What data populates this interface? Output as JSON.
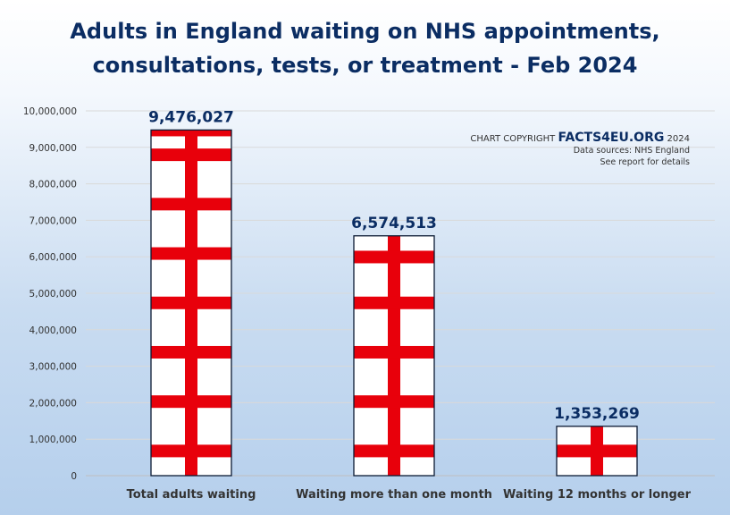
{
  "title_line1": "Adults in England waiting on NHS appointments,",
  "title_line2": "consultations, tests, or treatment - Feb 2024",
  "copyright": {
    "prefix": "CHART COPYRIGHT",
    "brand": "FACTS4EU.ORG",
    "year": "2024",
    "source": "Data sources: NHS England",
    "note": "See report for details"
  },
  "colors": {
    "title": "#0b2d63",
    "bar_fill": "#ffffff",
    "bar_border": "#0b1a33",
    "cross": "#e8000b",
    "label": "#0b2d63",
    "gridline": "#d9d9d9"
  },
  "chart_data": {
    "type": "bar",
    "title": "Adults in England waiting on NHS appointments, consultations, tests, or treatment - Feb 2024",
    "categories": [
      "Total adults waiting",
      "Waiting more than one month",
      "Waiting 12 months or longer"
    ],
    "values": [
      9476027,
      6574513,
      1353269
    ],
    "value_labels": [
      "9,476,027",
      "6,574,513",
      "1,353,269"
    ],
    "ylim": [
      0,
      10000000
    ],
    "yticks": [
      0,
      1000000,
      2000000,
      3000000,
      4000000,
      5000000,
      6000000,
      7000000,
      8000000,
      9000000,
      10000000
    ],
    "ytick_labels": [
      "0",
      "1,000,000",
      "2,000,000",
      "3,000,000",
      "4,000,000",
      "5,000,000",
      "6,000,000",
      "7,000,000",
      "8,000,000",
      "9,000,000",
      "10,000,000"
    ],
    "xlabel": "",
    "ylabel": "",
    "grid": true,
    "legend": "none"
  }
}
